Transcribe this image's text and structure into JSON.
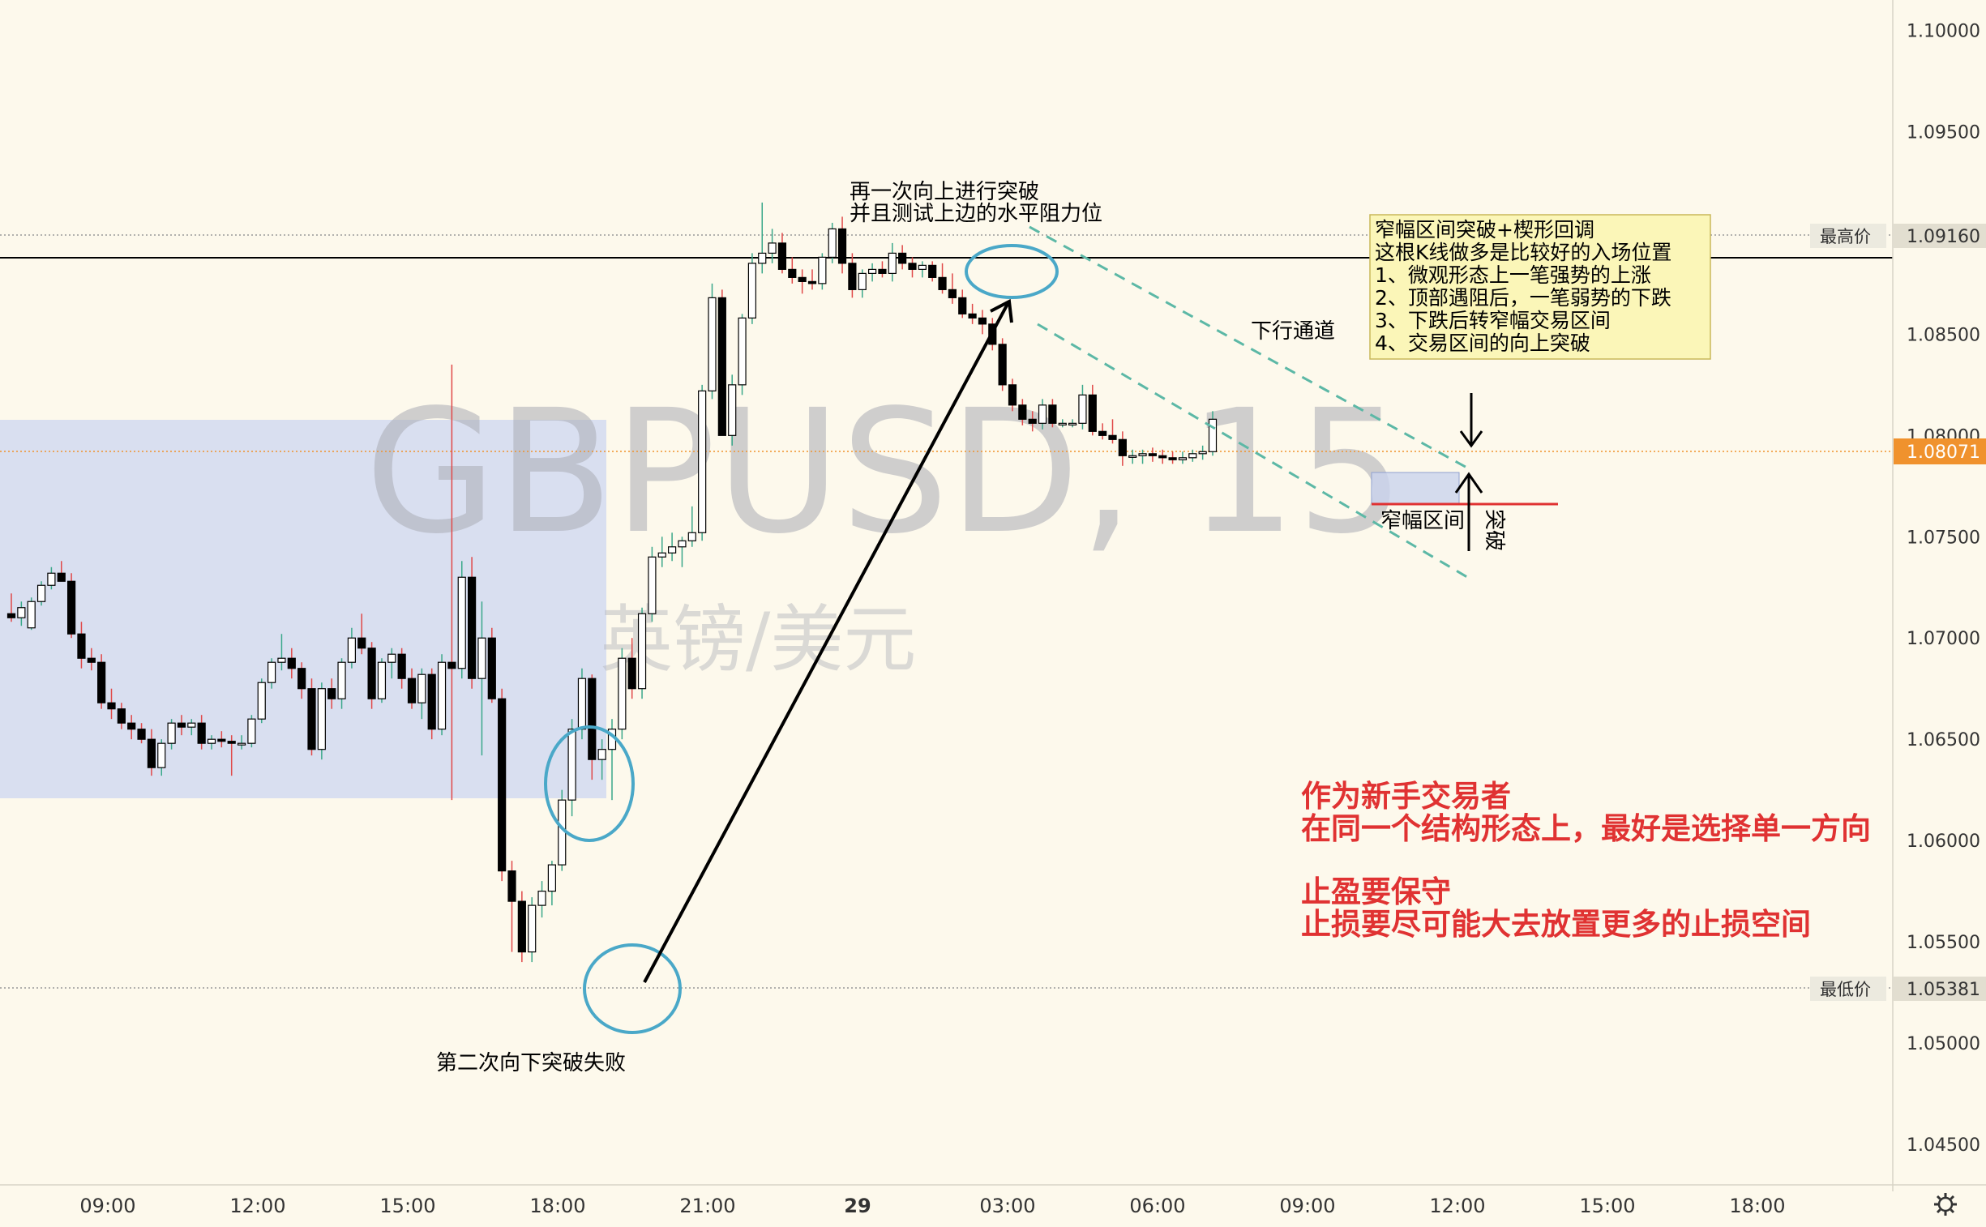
{
  "chart_data": {
    "type": "candlestick",
    "watermark": {
      "symbol": "GBPUSD, 15",
      "subtitle": "英镑/美元"
    },
    "y_axis": {
      "range": [
        1.043,
        1.1015
      ],
      "ticks": [
        "1.10000",
        "1.09500",
        "1.09000",
        "1.08500",
        "1.08000",
        "1.07500",
        "1.07000",
        "1.06500",
        "1.06000",
        "1.05500",
        "1.05000",
        "1.04500"
      ]
    },
    "x_axis": {
      "ticks": [
        "09:00",
        "12:00",
        "15:00",
        "18:00",
        "21:00",
        "29",
        "03:00",
        "06:00",
        "09:00",
        "12:00",
        "15:00",
        "18:00"
      ]
    },
    "price_markers": {
      "high": {
        "label": "最高价",
        "value": "1.09160"
      },
      "current": {
        "value": "1.08071"
      },
      "low": {
        "label": "最低价",
        "value": "1.05381"
      }
    },
    "candles": [
      {
        "o": 1.0712,
        "h": 1.0722,
        "l": 1.0708,
        "c": 1.071
      },
      {
        "o": 1.071,
        "h": 1.0718,
        "l": 1.0706,
        "c": 1.0715
      },
      {
        "o": 1.0705,
        "h": 1.072,
        "l": 1.0704,
        "c": 1.0718
      },
      {
        "o": 1.0718,
        "h": 1.0728,
        "l": 1.0716,
        "c": 1.0726
      },
      {
        "o": 1.0726,
        "h": 1.0735,
        "l": 1.0724,
        "c": 1.0732
      },
      {
        "o": 1.0732,
        "h": 1.0738,
        "l": 1.0728,
        "c": 1.0728
      },
      {
        "o": 1.0728,
        "h": 1.0732,
        "l": 1.07,
        "c": 1.0702
      },
      {
        "o": 1.0702,
        "h": 1.0708,
        "l": 1.0685,
        "c": 1.069
      },
      {
        "o": 1.069,
        "h": 1.0695,
        "l": 1.0684,
        "c": 1.0688
      },
      {
        "o": 1.0688,
        "h": 1.0692,
        "l": 1.0665,
        "c": 1.0668
      },
      {
        "o": 1.0668,
        "h": 1.0675,
        "l": 1.066,
        "c": 1.0665
      },
      {
        "o": 1.0665,
        "h": 1.0668,
        "l": 1.0655,
        "c": 1.0658
      },
      {
        "o": 1.0658,
        "h": 1.0662,
        "l": 1.065,
        "c": 1.0655
      },
      {
        "o": 1.0655,
        "h": 1.0658,
        "l": 1.0648,
        "c": 1.065
      },
      {
        "o": 1.065,
        "h": 1.0655,
        "l": 1.0632,
        "c": 1.0636
      },
      {
        "o": 1.0636,
        "h": 1.065,
        "l": 1.0632,
        "c": 1.0648
      },
      {
        "o": 1.0648,
        "h": 1.066,
        "l": 1.0645,
        "c": 1.0658
      },
      {
        "o": 1.0658,
        "h": 1.0662,
        "l": 1.0652,
        "c": 1.0656
      },
      {
        "o": 1.0656,
        "h": 1.066,
        "l": 1.0652,
        "c": 1.0658
      },
      {
        "o": 1.0658,
        "h": 1.0662,
        "l": 1.0645,
        "c": 1.0648
      },
      {
        "o": 1.0648,
        "h": 1.0652,
        "l": 1.0645,
        "c": 1.065
      },
      {
        "o": 1.065,
        "h": 1.0654,
        "l": 1.0646,
        "c": 1.0649
      },
      {
        "o": 1.0649,
        "h": 1.0652,
        "l": 1.0632,
        "c": 1.0648
      },
      {
        "o": 1.0648,
        "h": 1.0652,
        "l": 1.0645,
        "c": 1.0648
      },
      {
        "o": 1.0648,
        "h": 1.0662,
        "l": 1.0646,
        "c": 1.066
      },
      {
        "o": 1.066,
        "h": 1.068,
        "l": 1.0658,
        "c": 1.0678
      },
      {
        "o": 1.0678,
        "h": 1.069,
        "l": 1.0675,
        "c": 1.0688
      },
      {
        "o": 1.0688,
        "h": 1.0702,
        "l": 1.0684,
        "c": 1.069
      },
      {
        "o": 1.069,
        "h": 1.0695,
        "l": 1.068,
        "c": 1.0685
      },
      {
        "o": 1.0685,
        "h": 1.0688,
        "l": 1.067,
        "c": 1.0675
      },
      {
        "o": 1.0675,
        "h": 1.068,
        "l": 1.0642,
        "c": 1.0645
      },
      {
        "o": 1.0645,
        "h": 1.0678,
        "l": 1.064,
        "c": 1.0675
      },
      {
        "o": 1.0675,
        "h": 1.068,
        "l": 1.0665,
        "c": 1.067
      },
      {
        "o": 1.067,
        "h": 1.069,
        "l": 1.0665,
        "c": 1.0688
      },
      {
        "o": 1.0688,
        "h": 1.0705,
        "l": 1.0685,
        "c": 1.07
      },
      {
        "o": 1.07,
        "h": 1.0712,
        "l": 1.0692,
        "c": 1.0695
      },
      {
        "o": 1.0695,
        "h": 1.0698,
        "l": 1.0665,
        "c": 1.067
      },
      {
        "o": 1.067,
        "h": 1.069,
        "l": 1.0668,
        "c": 1.0688
      },
      {
        "o": 1.0688,
        "h": 1.0695,
        "l": 1.068,
        "c": 1.0692
      },
      {
        "o": 1.0692,
        "h": 1.0695,
        "l": 1.0675,
        "c": 1.068
      },
      {
        "o": 1.068,
        "h": 1.0685,
        "l": 1.0665,
        "c": 1.0668
      },
      {
        "o": 1.0668,
        "h": 1.0685,
        "l": 1.066,
        "c": 1.0682
      },
      {
        "o": 1.0682,
        "h": 1.0685,
        "l": 1.065,
        "c": 1.0655
      },
      {
        "o": 1.0655,
        "h": 1.0692,
        "l": 1.0652,
        "c": 1.0688
      },
      {
        "o": 1.0688,
        "h": 1.0835,
        "l": 1.062,
        "c": 1.0685
      },
      {
        "o": 1.0685,
        "h": 1.0738,
        "l": 1.068,
        "c": 1.073
      },
      {
        "o": 1.073,
        "h": 1.074,
        "l": 1.0675,
        "c": 1.068
      },
      {
        "o": 1.068,
        "h": 1.0718,
        "l": 1.0642,
        "c": 1.07
      },
      {
        "o": 1.07,
        "h": 1.0705,
        "l": 1.0668,
        "c": 1.067
      },
      {
        "o": 1.067,
        "h": 1.0675,
        "l": 1.058,
        "c": 1.0585
      },
      {
        "o": 1.0585,
        "h": 1.059,
        "l": 1.0545,
        "c": 1.057
      },
      {
        "o": 1.057,
        "h": 1.0575,
        "l": 1.054,
        "c": 1.0545
      },
      {
        "o": 1.0545,
        "h": 1.0572,
        "l": 1.054,
        "c": 1.0568
      },
      {
        "o": 1.0568,
        "h": 1.058,
        "l": 1.0562,
        "c": 1.0575
      },
      {
        "o": 1.0575,
        "h": 1.059,
        "l": 1.0568,
        "c": 1.0588
      },
      {
        "o": 1.0588,
        "h": 1.0625,
        "l": 1.0585,
        "c": 1.062
      },
      {
        "o": 1.062,
        "h": 1.066,
        "l": 1.0612,
        "c": 1.0655
      },
      {
        "o": 1.0655,
        "h": 1.0685,
        "l": 1.065,
        "c": 1.068
      },
      {
        "o": 1.068,
        "h": 1.0682,
        "l": 1.063,
        "c": 1.064
      },
      {
        "o": 1.064,
        "h": 1.065,
        "l": 1.063,
        "c": 1.0645
      },
      {
        "o": 1.0645,
        "h": 1.066,
        "l": 1.062,
        "c": 1.0655
      },
      {
        "o": 1.0655,
        "h": 1.0695,
        "l": 1.065,
        "c": 1.069
      },
      {
        "o": 1.069,
        "h": 1.07,
        "l": 1.067,
        "c": 1.0675
      },
      {
        "o": 1.0675,
        "h": 1.0715,
        "l": 1.067,
        "c": 1.0712
      },
      {
        "o": 1.0712,
        "h": 1.0745,
        "l": 1.0708,
        "c": 1.074
      },
      {
        "o": 1.074,
        "h": 1.075,
        "l": 1.0735,
        "c": 1.0742
      },
      {
        "o": 1.0742,
        "h": 1.0752,
        "l": 1.0738,
        "c": 1.0745
      },
      {
        "o": 1.0745,
        "h": 1.075,
        "l": 1.0735,
        "c": 1.0748
      },
      {
        "o": 1.0748,
        "h": 1.0765,
        "l": 1.0745,
        "c": 1.0752
      },
      {
        "o": 1.0752,
        "h": 1.0825,
        "l": 1.0748,
        "c": 1.0822
      },
      {
        "o": 1.0822,
        "h": 1.0875,
        "l": 1.0818,
        "c": 1.0868
      },
      {
        "o": 1.0868,
        "h": 1.0872,
        "l": 1.08,
        "c": 1.08
      },
      {
        "o": 1.08,
        "h": 1.083,
        "l": 1.0795,
        "c": 1.0825
      },
      {
        "o": 1.0825,
        "h": 1.086,
        "l": 1.082,
        "c": 1.0858
      },
      {
        "o": 1.0858,
        "h": 1.089,
        "l": 1.0855,
        "c": 1.0885
      },
      {
        "o": 1.0885,
        "h": 1.0915,
        "l": 1.088,
        "c": 1.089
      },
      {
        "o": 1.089,
        "h": 1.0902,
        "l": 1.0885,
        "c": 1.0895
      },
      {
        "o": 1.0895,
        "h": 1.09,
        "l": 1.088,
        "c": 1.0882
      },
      {
        "o": 1.0882,
        "h": 1.0888,
        "l": 1.0875,
        "c": 1.0878
      },
      {
        "o": 1.0878,
        "h": 1.0882,
        "l": 1.087,
        "c": 1.0876
      },
      {
        "o": 1.0876,
        "h": 1.0882,
        "l": 1.0872,
        "c": 1.0875
      },
      {
        "o": 1.0875,
        "h": 1.089,
        "l": 1.0872,
        "c": 1.0888
      },
      {
        "o": 1.0888,
        "h": 1.0905,
        "l": 1.0885,
        "c": 1.0902
      },
      {
        "o": 1.0902,
        "h": 1.0908,
        "l": 1.088,
        "c": 1.0885
      },
      {
        "o": 1.0885,
        "h": 1.089,
        "l": 1.0868,
        "c": 1.0872
      },
      {
        "o": 1.0872,
        "h": 1.0882,
        "l": 1.0868,
        "c": 1.088
      },
      {
        "o": 1.088,
        "h": 1.0885,
        "l": 1.0876,
        "c": 1.0882
      },
      {
        "o": 1.0882,
        "h": 1.0886,
        "l": 1.0878,
        "c": 1.088
      },
      {
        "o": 1.088,
        "h": 1.0895,
        "l": 1.0876,
        "c": 1.089
      },
      {
        "o": 1.089,
        "h": 1.0894,
        "l": 1.0882,
        "c": 1.0885
      },
      {
        "o": 1.0885,
        "h": 1.0888,
        "l": 1.0878,
        "c": 1.0882
      },
      {
        "o": 1.0882,
        "h": 1.0886,
        "l": 1.0878,
        "c": 1.0884
      },
      {
        "o": 1.0884,
        "h": 1.0886,
        "l": 1.0876,
        "c": 1.0878
      },
      {
        "o": 1.0878,
        "h": 1.0885,
        "l": 1.087,
        "c": 1.0872
      },
      {
        "o": 1.0872,
        "h": 1.088,
        "l": 1.0865,
        "c": 1.0868
      },
      {
        "o": 1.0868,
        "h": 1.0872,
        "l": 1.0858,
        "c": 1.086
      },
      {
        "o": 1.086,
        "h": 1.0865,
        "l": 1.0855,
        "c": 1.0858
      },
      {
        "o": 1.0858,
        "h": 1.0862,
        "l": 1.085,
        "c": 1.0855
      },
      {
        "o": 1.0855,
        "h": 1.0858,
        "l": 1.0842,
        "c": 1.0845
      },
      {
        "o": 1.0845,
        "h": 1.0848,
        "l": 1.0822,
        "c": 1.0825
      },
      {
        "o": 1.0825,
        "h": 1.0828,
        "l": 1.0812,
        "c": 1.0815
      },
      {
        "o": 1.0815,
        "h": 1.0818,
        "l": 1.0805,
        "c": 1.0808
      },
      {
        "o": 1.0808,
        "h": 1.0812,
        "l": 1.0802,
        "c": 1.0806
      },
      {
        "o": 1.0806,
        "h": 1.0818,
        "l": 1.0803,
        "c": 1.0815
      },
      {
        "o": 1.0815,
        "h": 1.0818,
        "l": 1.0804,
        "c": 1.0806
      },
      {
        "o": 1.0806,
        "h": 1.0808,
        "l": 1.0804,
        "c": 1.0806
      },
      {
        "o": 1.0806,
        "h": 1.0808,
        "l": 1.0804,
        "c": 1.0806
      },
      {
        "o": 1.0806,
        "h": 1.0825,
        "l": 1.0803,
        "c": 1.082
      },
      {
        "o": 1.082,
        "h": 1.0825,
        "l": 1.08,
        "c": 1.0802
      },
      {
        "o": 1.0802,
        "h": 1.0806,
        "l": 1.0798,
        "c": 1.08
      },
      {
        "o": 1.08,
        "h": 1.0808,
        "l": 1.0796,
        "c": 1.0798
      },
      {
        "o": 1.0798,
        "h": 1.0802,
        "l": 1.0785,
        "c": 1.079
      },
      {
        "o": 1.079,
        "h": 1.0793,
        "l": 1.0786,
        "c": 1.079
      },
      {
        "o": 1.079,
        "h": 1.0793,
        "l": 1.0786,
        "c": 1.0791
      },
      {
        "o": 1.0791,
        "h": 1.0794,
        "l": 1.0787,
        "c": 1.079
      },
      {
        "o": 1.079,
        "h": 1.0793,
        "l": 1.0786,
        "c": 1.0789
      },
      {
        "o": 1.0789,
        "h": 1.0792,
        "l": 1.0786,
        "c": 1.0788
      },
      {
        "o": 1.0788,
        "h": 1.0792,
        "l": 1.0786,
        "c": 1.0789
      },
      {
        "o": 1.0789,
        "h": 1.0793,
        "l": 1.0787,
        "c": 1.0791
      },
      {
        "o": 1.0791,
        "h": 1.0795,
        "l": 1.0788,
        "c": 1.0792
      },
      {
        "o": 1.0792,
        "h": 1.0812,
        "l": 1.079,
        "c": 1.0808
      }
    ],
    "annotations": {
      "top_note_line1": "再一次向上进行突破",
      "top_note_line2": "并且测试上边的水平阻力位",
      "bottom_note": "第二次向下突破失败",
      "channel_label": "下行通道",
      "range_label": "窄幅区间",
      "breakout_label": "突破",
      "info_box": [
        "窄幅区间突破+楔形回调",
        "这根K线做多是比较好的入场位置",
        "1、微观形态上一笔强势的上涨",
        "2、顶部遇阻后，一笔弱势的下跌",
        "3、下跌后转窄幅交易区间",
        "4、交易区间的向上突破"
      ],
      "red_text": [
        "作为新手交易者",
        "在同一个结构形态上，最好是选择单一方向",
        "",
        "止盈要保守",
        "止损要尽可能大去放置更多的止损空间"
      ]
    },
    "colors": {
      "background": "#fdf9ec",
      "up_candle": "#ffffff",
      "down_candle": "#000000",
      "range_box": "#d9dff0",
      "circle": "#4aa8c8",
      "channel": "#5cb8a6",
      "current_price": "#f0922d",
      "red_text": "#e03232",
      "info_box_fill": "#fbf6b8"
    }
  }
}
